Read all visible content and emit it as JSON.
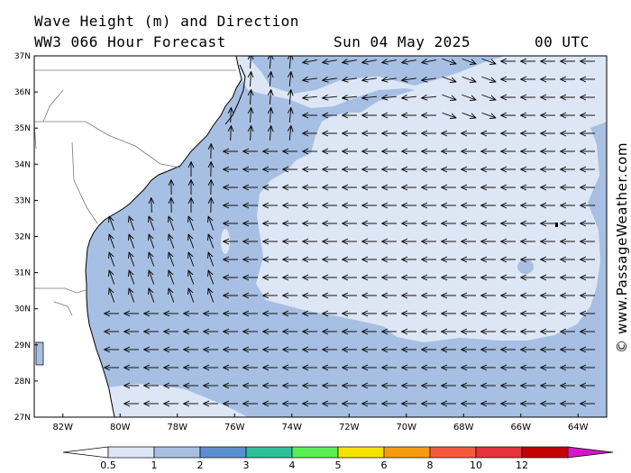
{
  "header": {
    "title_line1": "Wave Height (m) and Direction",
    "title_line2": "WW3 066 Hour Forecast",
    "date": "Sun 04 May 2025",
    "time": "00 UTC"
  },
  "axes": {
    "lat_labels": [
      "37N",
      "36N",
      "35N",
      "34N",
      "33N",
      "32N",
      "31N",
      "30N",
      "29N",
      "28N",
      "27N"
    ],
    "lon_labels": [
      "82W",
      "80W",
      "78W",
      "76W",
      "74W",
      "72W",
      "70W",
      "68W",
      "66W",
      "64W"
    ],
    "lat_range": [
      27,
      37
    ],
    "lon_range": [
      -83,
      -63
    ]
  },
  "colorbar": {
    "labels": [
      "0.5",
      "1",
      "2",
      "3",
      "4",
      "5",
      "6",
      "8",
      "10",
      "12"
    ],
    "colors": [
      "#dce6f5",
      "#a9c0e3",
      "#5b8fd0",
      "#2ec09a",
      "#5cee55",
      "#f5e200",
      "#f59c10",
      "#f55a3f",
      "#e8323c",
      "#c40000",
      "#d418c8"
    ]
  },
  "fill_colors": {
    "light": "#dde6f4",
    "medium": "#a7bfe2",
    "land": "#ffffff"
  },
  "credit": "© www.PassageWeather.com"
}
